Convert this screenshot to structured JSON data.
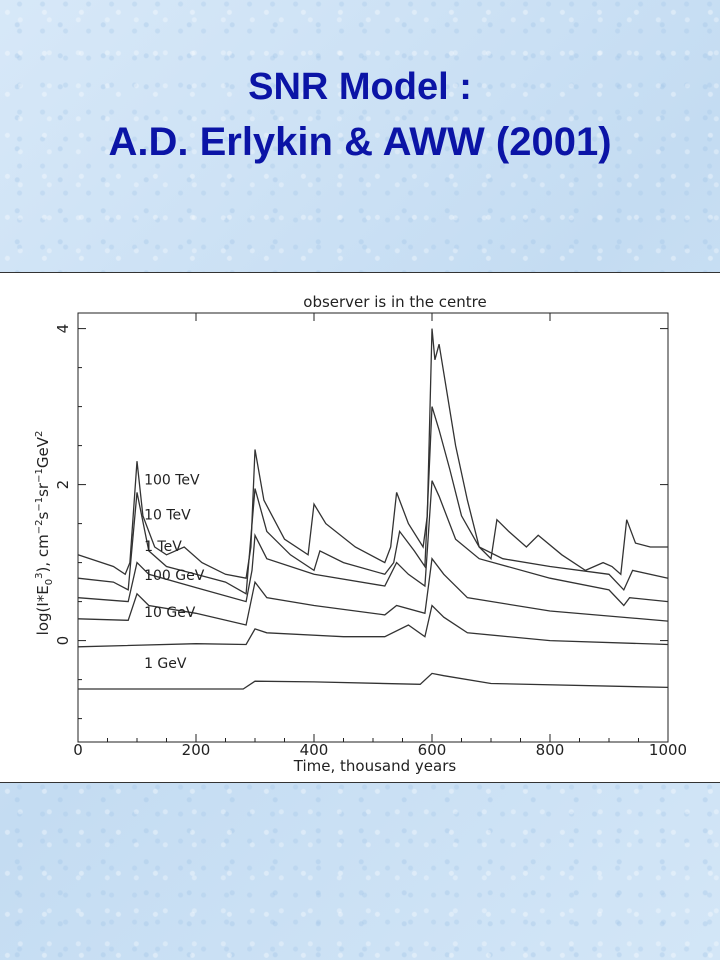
{
  "slide": {
    "title_line1": "SNR Model :",
    "title_line2": "A.D. Erlykin & AWW (2001)"
  },
  "chart_data": {
    "type": "line",
    "title": "observer is in the centre",
    "xlabel": "Time, thousand years",
    "ylabel": "log(I*E0^3), cm^-2 s^-1 sr^-1 GeV^2",
    "xlim": [
      0,
      1000
    ],
    "ylim": [
      -1.3,
      4.2
    ],
    "x_ticks": [
      0,
      200,
      400,
      600,
      800,
      1000
    ],
    "y_ticks": [
      0,
      2,
      4
    ],
    "series": [
      {
        "name": "100 TeV",
        "points": [
          [
            0,
            1.1
          ],
          [
            60,
            0.95
          ],
          [
            80,
            0.85
          ],
          [
            88,
            1.0
          ],
          [
            100,
            2.3
          ],
          [
            110,
            1.6
          ],
          [
            130,
            1.2
          ],
          [
            150,
            1.1
          ],
          [
            180,
            1.2
          ],
          [
            210,
            1.0
          ],
          [
            250,
            0.85
          ],
          [
            285,
            0.8
          ],
          [
            293,
            1.2
          ],
          [
            300,
            2.45
          ],
          [
            315,
            1.8
          ],
          [
            350,
            1.3
          ],
          [
            390,
            1.1
          ],
          [
            400,
            1.75
          ],
          [
            420,
            1.5
          ],
          [
            470,
            1.2
          ],
          [
            520,
            1.0
          ],
          [
            530,
            1.2
          ],
          [
            540,
            1.9
          ],
          [
            560,
            1.5
          ],
          [
            585,
            1.2
          ],
          [
            592,
            1.6
          ],
          [
            600,
            4.0
          ],
          [
            605,
            3.6
          ],
          [
            612,
            3.8
          ],
          [
            640,
            2.5
          ],
          [
            660,
            1.8
          ],
          [
            680,
            1.2
          ],
          [
            700,
            1.05
          ],
          [
            710,
            1.55
          ],
          [
            730,
            1.4
          ],
          [
            760,
            1.2
          ],
          [
            780,
            1.35
          ],
          [
            820,
            1.1
          ],
          [
            860,
            0.9
          ],
          [
            890,
            1.0
          ],
          [
            905,
            0.95
          ],
          [
            920,
            0.85
          ],
          [
            930,
            1.55
          ],
          [
            945,
            1.25
          ],
          [
            970,
            1.2
          ],
          [
            1000,
            1.2
          ]
        ]
      },
      {
        "name": "10 TeV",
        "points": [
          [
            0,
            0.8
          ],
          [
            60,
            0.75
          ],
          [
            85,
            0.65
          ],
          [
            100,
            1.9
          ],
          [
            120,
            1.15
          ],
          [
            150,
            0.95
          ],
          [
            200,
            0.85
          ],
          [
            250,
            0.75
          ],
          [
            285,
            0.6
          ],
          [
            300,
            1.95
          ],
          [
            320,
            1.4
          ],
          [
            360,
            1.1
          ],
          [
            400,
            0.9
          ],
          [
            410,
            1.15
          ],
          [
            450,
            1.0
          ],
          [
            520,
            0.85
          ],
          [
            535,
            1.0
          ],
          [
            545,
            1.4
          ],
          [
            570,
            1.15
          ],
          [
            588,
            0.95
          ],
          [
            600,
            3.0
          ],
          [
            612,
            2.7
          ],
          [
            630,
            2.2
          ],
          [
            650,
            1.6
          ],
          [
            680,
            1.2
          ],
          [
            720,
            1.05
          ],
          [
            800,
            0.95
          ],
          [
            900,
            0.85
          ],
          [
            925,
            0.65
          ],
          [
            940,
            0.9
          ],
          [
            1000,
            0.8
          ]
        ]
      },
      {
        "name": "1 TeV",
        "points": [
          [
            0,
            0.55
          ],
          [
            85,
            0.5
          ],
          [
            100,
            1.0
          ],
          [
            120,
            0.85
          ],
          [
            200,
            0.68
          ],
          [
            285,
            0.5
          ],
          [
            295,
            0.9
          ],
          [
            300,
            1.35
          ],
          [
            320,
            1.05
          ],
          [
            400,
            0.85
          ],
          [
            520,
            0.7
          ],
          [
            540,
            1.0
          ],
          [
            560,
            0.85
          ],
          [
            588,
            0.7
          ],
          [
            600,
            2.05
          ],
          [
            612,
            1.85
          ],
          [
            640,
            1.3
          ],
          [
            680,
            1.05
          ],
          [
            800,
            0.8
          ],
          [
            900,
            0.65
          ],
          [
            925,
            0.45
          ],
          [
            935,
            0.55
          ],
          [
            1000,
            0.5
          ]
        ]
      },
      {
        "name": "100 GeV",
        "points": [
          [
            0,
            0.28
          ],
          [
            85,
            0.26
          ],
          [
            100,
            0.6
          ],
          [
            120,
            0.45
          ],
          [
            200,
            0.35
          ],
          [
            285,
            0.2
          ],
          [
            300,
            0.75
          ],
          [
            320,
            0.55
          ],
          [
            400,
            0.45
          ],
          [
            520,
            0.33
          ],
          [
            540,
            0.45
          ],
          [
            588,
            0.35
          ],
          [
            600,
            1.05
          ],
          [
            620,
            0.85
          ],
          [
            660,
            0.55
          ],
          [
            800,
            0.38
          ],
          [
            1000,
            0.25
          ]
        ]
      },
      {
        "name": "10 GeV",
        "points": [
          [
            0,
            -0.08
          ],
          [
            200,
            -0.04
          ],
          [
            285,
            -0.05
          ],
          [
            300,
            0.15
          ],
          [
            320,
            0.1
          ],
          [
            450,
            0.05
          ],
          [
            520,
            0.05
          ],
          [
            560,
            0.2
          ],
          [
            588,
            0.05
          ],
          [
            600,
            0.45
          ],
          [
            620,
            0.3
          ],
          [
            660,
            0.1
          ],
          [
            800,
            0.0
          ],
          [
            1000,
            -0.05
          ]
        ]
      },
      {
        "name": "1 GeV",
        "points": [
          [
            0,
            -0.62
          ],
          [
            280,
            -0.62
          ],
          [
            300,
            -0.52
          ],
          [
            400,
            -0.53
          ],
          [
            580,
            -0.56
          ],
          [
            600,
            -0.42
          ],
          [
            620,
            -0.45
          ],
          [
            700,
            -0.55
          ],
          [
            1000,
            -0.6
          ]
        ]
      }
    ]
  }
}
